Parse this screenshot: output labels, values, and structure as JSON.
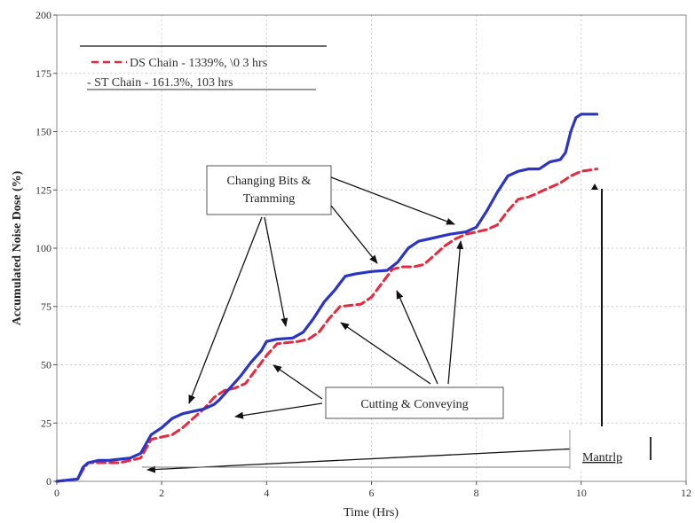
{
  "chart_data": {
    "type": "line",
    "xlabel": "Time (Hrs)",
    "ylabel": "Accumulated Noise Dose (%)",
    "xlim": [
      0,
      12
    ],
    "ylim": [
      0,
      200
    ],
    "x_ticks": [
      "0",
      "2",
      "4",
      "6",
      "8",
      "10",
      "12"
    ],
    "y_ticks": [
      "0",
      "25",
      "50",
      "75",
      "100",
      "125",
      "150",
      "175",
      "200"
    ],
    "grid": true,
    "legend_position": "top-left",
    "legend": {
      "ds_label": "DS Chain - 1339%, \\0 3 hrs",
      "st_label": "- ST Chain - 161.3%, 103 hrs"
    },
    "series": [
      {
        "name": "ST Chain",
        "color": "#2b35c4",
        "style": "solid",
        "x": [
          0,
          0.4,
          0.5,
          0.6,
          0.8,
          1.0,
          1.2,
          1.4,
          1.6,
          1.7,
          1.8,
          2.0,
          2.2,
          2.4,
          2.6,
          2.8,
          3.0,
          3.1,
          3.3,
          3.5,
          3.7,
          3.9,
          4.0,
          4.2,
          4.5,
          4.7,
          4.9,
          5.1,
          5.3,
          5.5,
          5.7,
          6.0,
          6.3,
          6.5,
          6.7,
          6.9,
          7.1,
          7.3,
          7.5,
          7.8,
          8.0,
          8.2,
          8.4,
          8.6,
          8.8,
          9.0,
          9.2,
          9.4,
          9.6,
          9.7,
          9.8,
          9.9,
          10.0,
          10.3
        ],
        "y": [
          0,
          1,
          6,
          8,
          9,
          9,
          9.5,
          10,
          12,
          16,
          20,
          23,
          27,
          29,
          30,
          31,
          33,
          35,
          40,
          45,
          51,
          56,
          60,
          61,
          61.5,
          64,
          70,
          77,
          82,
          88,
          89,
          90,
          90.5,
          94,
          100,
          103,
          104,
          105,
          106,
          107,
          109,
          116,
          124,
          131,
          133,
          134,
          134,
          137,
          138,
          141,
          150,
          156,
          157.5,
          157.5
        ]
      },
      {
        "name": "DS Chain",
        "color": "#e8283c",
        "style": "dashed",
        "x": [
          0,
          0.4,
          0.5,
          0.6,
          0.8,
          1.0,
          1.2,
          1.4,
          1.6,
          1.7,
          1.8,
          2.0,
          2.2,
          2.4,
          2.6,
          2.8,
          3.0,
          3.2,
          3.4,
          3.6,
          3.8,
          4.0,
          4.2,
          4.6,
          4.8,
          5.0,
          5.2,
          5.4,
          5.8,
          6.0,
          6.2,
          6.4,
          6.6,
          6.8,
          7.0,
          7.2,
          7.4,
          7.6,
          7.8,
          8.0,
          8.2,
          8.4,
          8.6,
          8.8,
          9.0,
          9.2,
          9.4,
          9.6,
          9.8,
          10.0,
          10.3
        ],
        "y": [
          0,
          1,
          5,
          8,
          8,
          8,
          8,
          9,
          10,
          14,
          18,
          19,
          20,
          23,
          27,
          31,
          36,
          39,
          40,
          42,
          48,
          54,
          59,
          60,
          61,
          64,
          70,
          75,
          76,
          79,
          85,
          91,
          92,
          92,
          93,
          97,
          101,
          104,
          106,
          107,
          108,
          110,
          116,
          121,
          122,
          124,
          126,
          128,
          131,
          133,
          134
        ]
      }
    ],
    "annotations": {
      "changing_bits_line1": "Changing Bits &",
      "changing_bits_line2": "Tramming",
      "cutting_conveying": "Cutting & Conveying",
      "mantrip": "Mantrlp"
    }
  }
}
